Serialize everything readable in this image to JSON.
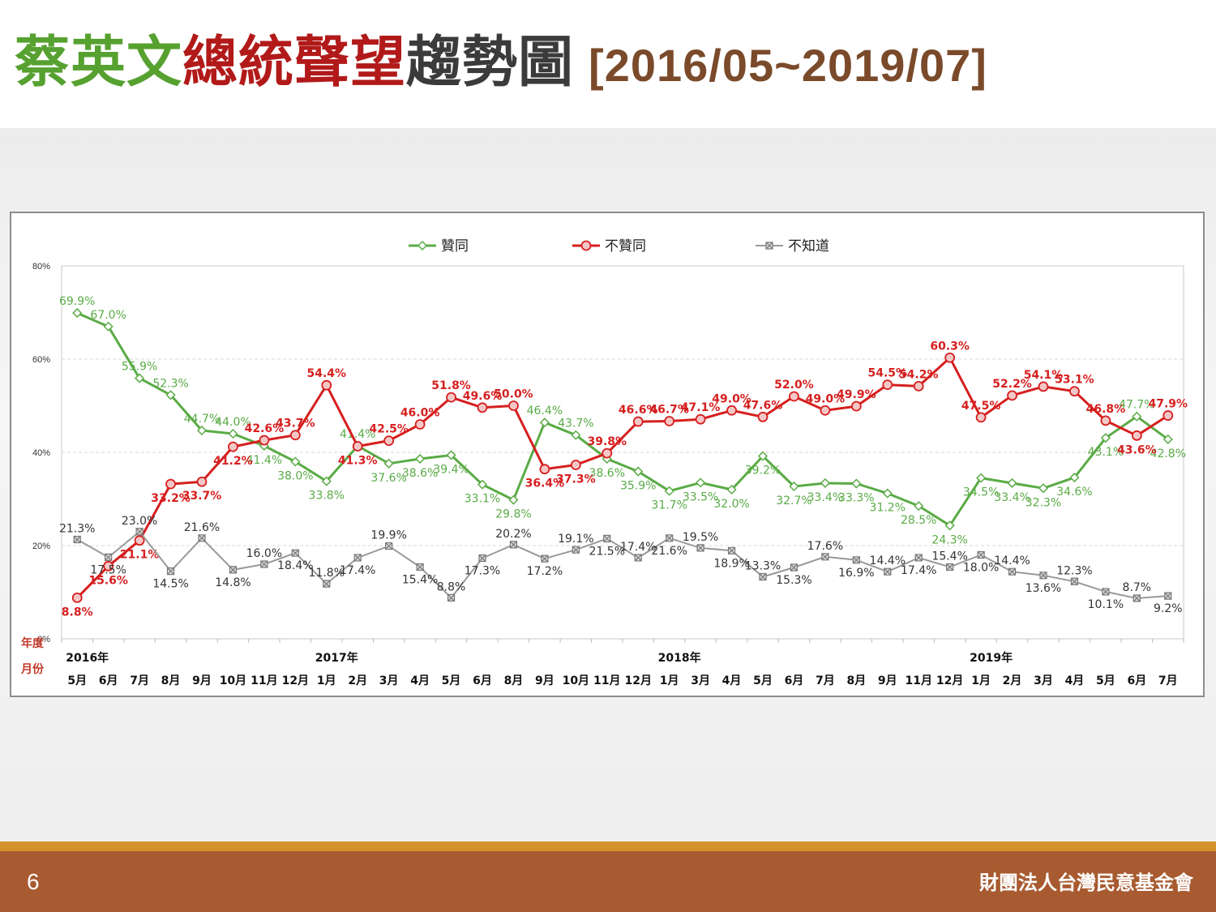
{
  "title": {
    "part1": "蔡英文",
    "part2": "總統聲望",
    "part3": "趨勢圖",
    "range": "[2016/05~2019/07]"
  },
  "footer": {
    "page_number": "6",
    "organization": "財團法人台灣民意基金會"
  },
  "colors": {
    "approve": "#5aab46",
    "disapprove": "#d61f1f",
    "unknown": "#999999",
    "title_green": "#56a130",
    "title_red": "#b21a1a",
    "footer": "#a85a30"
  },
  "chart_data": {
    "type": "line",
    "ylim": [
      0,
      80
    ],
    "yticks": [
      "0%",
      "20%",
      "40%",
      "60%",
      "80%"
    ],
    "grid": true,
    "legend_position": "top-center",
    "row_labels": {
      "year": "年度",
      "month": "月份"
    },
    "years": [
      {
        "label": "2016年",
        "index": 0
      },
      {
        "label": "2017年",
        "index": 8
      },
      {
        "label": "2018年",
        "index": 19
      },
      {
        "label": "2019年",
        "index": 29
      }
    ],
    "categories": [
      "5月",
      "6月",
      "7月",
      "8月",
      "9月",
      "10月",
      "11月",
      "12月",
      "1月",
      "2月",
      "3月",
      "4月",
      "5月",
      "6月",
      "8月",
      "9月",
      "10月",
      "11月",
      "12月",
      "1月",
      "3月",
      "4月",
      "5月",
      "6月",
      "7月",
      "8月",
      "9月",
      "11月",
      "12月",
      "1月",
      "2月",
      "3月",
      "4月",
      "5月",
      "6月",
      "7月"
    ],
    "series": [
      {
        "name": "贊同",
        "marker": "diamond",
        "values": [
          69.9,
          67.0,
          55.9,
          52.3,
          44.7,
          44.0,
          41.4,
          38.0,
          33.8,
          41.4,
          37.6,
          38.6,
          39.4,
          33.1,
          29.8,
          46.4,
          43.7,
          38.6,
          35.9,
          31.7,
          33.5,
          32.0,
          39.2,
          32.7,
          33.4,
          33.3,
          31.2,
          28.5,
          24.3,
          34.5,
          33.4,
          32.3,
          34.6,
          43.1,
          47.7,
          42.8
        ]
      },
      {
        "name": "不贊同",
        "marker": "circle",
        "values": [
          8.8,
          15.6,
          21.1,
          33.2,
          33.7,
          41.2,
          42.6,
          43.7,
          54.4,
          41.3,
          42.5,
          46.0,
          51.8,
          49.6,
          50.0,
          36.4,
          37.3,
          39.8,
          46.6,
          46.7,
          47.1,
          49.0,
          47.6,
          52.0,
          49.0,
          49.9,
          54.5,
          54.2,
          60.3,
          47.5,
          52.2,
          54.1,
          53.1,
          46.8,
          43.6,
          47.9
        ]
      },
      {
        "name": "不知道",
        "marker": "x-square",
        "values": [
          21.3,
          17.5,
          23.0,
          14.5,
          21.6,
          14.8,
          16.0,
          18.4,
          11.8,
          17.4,
          19.9,
          15.4,
          8.8,
          17.3,
          20.2,
          17.2,
          19.1,
          21.5,
          17.4,
          21.6,
          19.5,
          18.9,
          13.3,
          15.3,
          17.6,
          16.9,
          14.4,
          17.4,
          15.4,
          18.0,
          14.4,
          13.6,
          12.3,
          10.1,
          8.7,
          9.2
        ]
      }
    ]
  }
}
